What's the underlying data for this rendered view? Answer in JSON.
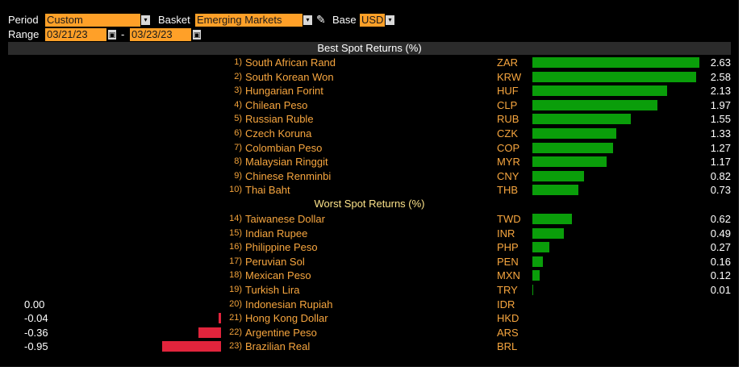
{
  "controls": {
    "period_label": "Period",
    "period_value": "Custom",
    "basket_label": "Basket",
    "basket_value": "Emerging Markets",
    "base_label": "Base",
    "base_value": "USD",
    "range_label": "Range",
    "range_start": "03/21/23",
    "range_sep": "-",
    "range_end": "03/23/23",
    "dropdown_glyph": "▾",
    "calendar_glyph": "▣",
    "edit_glyph": "✎"
  },
  "best_title": "Best Spot Returns (%)",
  "worst_title": "Worst Spot Returns (%)",
  "colors": {
    "positive": "#0a9e0a",
    "negative": "#e1243c",
    "accent": "#ffa028"
  },
  "chart_data": {
    "type": "bar",
    "title": "Best Spot Returns (%) / Worst Spot Returns (%)",
    "unit": "%",
    "best": [
      {
        "rank": "1)",
        "name": "South African Rand",
        "code": "ZAR",
        "value": 2.63,
        "label": "2.63"
      },
      {
        "rank": "2)",
        "name": "South Korean Won",
        "code": "KRW",
        "value": 2.58,
        "label": "2.58"
      },
      {
        "rank": "3)",
        "name": "Hungarian Forint",
        "code": "HUF",
        "value": 2.13,
        "label": "2.13"
      },
      {
        "rank": "4)",
        "name": "Chilean Peso",
        "code": "CLP",
        "value": 1.97,
        "label": "1.97"
      },
      {
        "rank": "5)",
        "name": "Russian Ruble",
        "code": "RUB",
        "value": 1.55,
        "label": "1.55"
      },
      {
        "rank": "6)",
        "name": "Czech Koruna",
        "code": "CZK",
        "value": 1.33,
        "label": "1.33"
      },
      {
        "rank": "7)",
        "name": "Colombian Peso",
        "code": "COP",
        "value": 1.27,
        "label": "1.27"
      },
      {
        "rank": "8)",
        "name": "Malaysian Ringgit",
        "code": "MYR",
        "value": 1.17,
        "label": "1.17"
      },
      {
        "rank": "9)",
        "name": "Chinese Renminbi",
        "code": "CNY",
        "value": 0.82,
        "label": "0.82"
      },
      {
        "rank": "10)",
        "name": "Thai Baht",
        "code": "THB",
        "value": 0.73,
        "label": "0.73"
      }
    ],
    "worst": [
      {
        "rank": "14)",
        "name": "Taiwanese Dollar",
        "code": "TWD",
        "value": 0.62,
        "label": "0.62"
      },
      {
        "rank": "15)",
        "name": "Indian Rupee",
        "code": "INR",
        "value": 0.49,
        "label": "0.49"
      },
      {
        "rank": "16)",
        "name": "Philippine Peso",
        "code": "PHP",
        "value": 0.27,
        "label": "0.27"
      },
      {
        "rank": "17)",
        "name": "Peruvian Sol",
        "code": "PEN",
        "value": 0.16,
        "label": "0.16"
      },
      {
        "rank": "18)",
        "name": "Mexican Peso",
        "code": "MXN",
        "value": 0.12,
        "label": "0.12"
      },
      {
        "rank": "19)",
        "name": "Turkish Lira",
        "code": "TRY",
        "value": 0.01,
        "label": "0.01"
      },
      {
        "rank": "20)",
        "name": "Indonesian Rupiah",
        "code": "IDR",
        "value": 0.0,
        "label": "0.00"
      },
      {
        "rank": "21)",
        "name": "Hong Kong Dollar",
        "code": "HKD",
        "value": -0.04,
        "label": "-0.04"
      },
      {
        "rank": "22)",
        "name": "Argentine Peso",
        "code": "ARS",
        "value": -0.36,
        "label": "-0.36"
      },
      {
        "rank": "23)",
        "name": "Brazilian Real",
        "code": "BRL",
        "value": -0.95,
        "label": "-0.95"
      }
    ]
  }
}
